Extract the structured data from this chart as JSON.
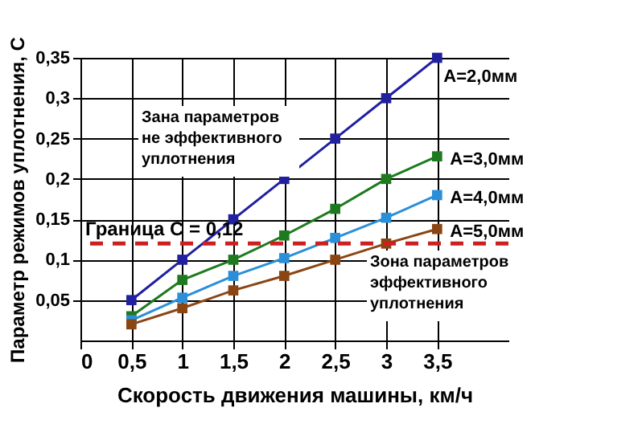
{
  "chart_data": {
    "type": "line",
    "xlabel": "Скорость движения машины, км/ч",
    "ylabel": "Параметр режимов уплотнения, С",
    "x": [
      0.5,
      1,
      1.5,
      2,
      2.5,
      3,
      3.5
    ],
    "series": [
      {
        "name": "А=2,0мм",
        "color": "#2020a0",
        "values": [
          0.05,
          0.1,
          0.15,
          0.2,
          0.25,
          0.3,
          0.35
        ]
      },
      {
        "name": "А=3,0мм",
        "color": "#1e7a1e",
        "values": [
          0.03,
          0.075,
          0.1,
          0.13,
          0.163,
          0.2,
          0.228
        ]
      },
      {
        "name": "А=4,0мм",
        "color": "#2a8fd8",
        "values": [
          0.025,
          0.053,
          0.08,
          0.102,
          0.127,
          0.152,
          0.18
        ]
      },
      {
        "name": "А=5,0мм",
        "color": "#8b4513",
        "values": [
          0.02,
          0.04,
          0.062,
          0.08,
          0.1,
          0.12,
          0.138
        ]
      }
    ],
    "xlim": [
      0,
      4.2
    ],
    "xticks": [
      0,
      {
        "value": 0.5,
        "label": "0,5"
      },
      1,
      {
        "value": 1.5,
        "label": "1,5"
      },
      2,
      {
        "value": 2.5,
        "label": "2,5"
      },
      3,
      {
        "value": 3.5,
        "label": "3,5"
      }
    ],
    "ylim": [
      0,
      0.35
    ],
    "yticks": [
      {
        "value": 0.05,
        "label": "0,05"
      },
      {
        "value": 0.1,
        "label": "0,1"
      },
      {
        "value": 0.15,
        "label": "0,15"
      },
      {
        "value": 0.2,
        "label": "0,2"
      },
      {
        "value": 0.25,
        "label": "0,25"
      },
      {
        "value": 0.3,
        "label": "0,3"
      },
      {
        "value": 0.35,
        "label": "0,35"
      }
    ],
    "ref_lines": [
      {
        "axis": "y",
        "value": 0.12,
        "label": "Граница С = 0,12",
        "color": "#cc2020",
        "line_style": "dashed"
      }
    ],
    "annotations": [
      "Зана параметров\nне эффективного\nуплотнения",
      "Зона параметров\nэффективного\nуплотнения"
    ],
    "grid": true,
    "legend": false,
    "marker": "square",
    "line_style": "solid"
  }
}
